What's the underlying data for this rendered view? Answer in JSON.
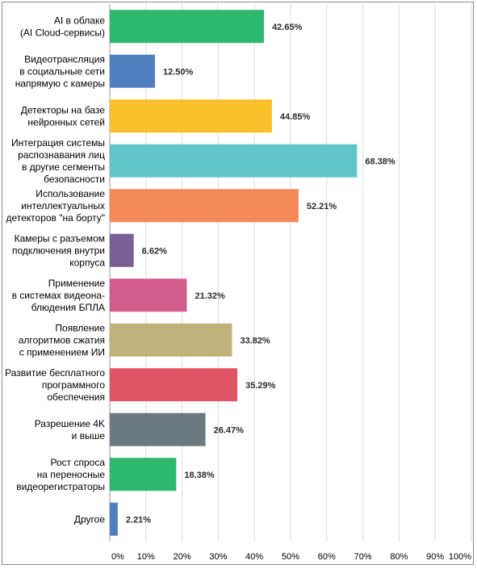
{
  "chart_data": {
    "type": "bar",
    "orientation": "horizontal",
    "categories": [
      "AI в облаке\n(AI Cloud-сервисы)",
      "Видеотрансляция\nв социальные сети\nнапрямую с камеры",
      "Детекторы на базе\nнейронных сетей",
      "Интеграция системы\nраспознавания лиц\nв другие сегменты\nбезопасности",
      "Использование\nинтеллектуальных\nдетекторов \"на борту\"",
      "Камеры с разъемом\nподключения внутри\nкорпуса",
      "Применение\nв системах видеона-\nблюдения БПЛА",
      "Появление\nалгоритмов сжатия\nс применением ИИ",
      "Развитие бесплатного\nпрограммного\nобеспечения",
      "Разрешение 4K\nи выше",
      "Рост спроса\nна переносные\nвидеорегистраторы",
      "Другое"
    ],
    "values": [
      42.65,
      12.5,
      44.85,
      68.38,
      52.21,
      6.62,
      21.32,
      33.82,
      35.29,
      26.47,
      18.38,
      2.21
    ],
    "value_labels": [
      "42.65%",
      "12.50%",
      "44.85%",
      "68.38%",
      "52.21%",
      "6.62%",
      "21.32%",
      "33.82%",
      "35.29%",
      "26.47%",
      "18.38%",
      "2.21%"
    ],
    "colors": [
      "#2cb86f",
      "#4f7fbe",
      "#f8c02a",
      "#5fc6c9",
      "#f5895a",
      "#7a5f96",
      "#d35c8f",
      "#bfb27a",
      "#e05566",
      "#6c7b82",
      "#2cb86f",
      "#4f7fbe"
    ],
    "xlim": [
      0,
      100
    ],
    "x_ticks": [
      "0%",
      "10%",
      "20%",
      "30%",
      "40%",
      "50%",
      "60%",
      "70%",
      "80%",
      "90%",
      "100%"
    ],
    "grid": true,
    "legend": "none"
  }
}
